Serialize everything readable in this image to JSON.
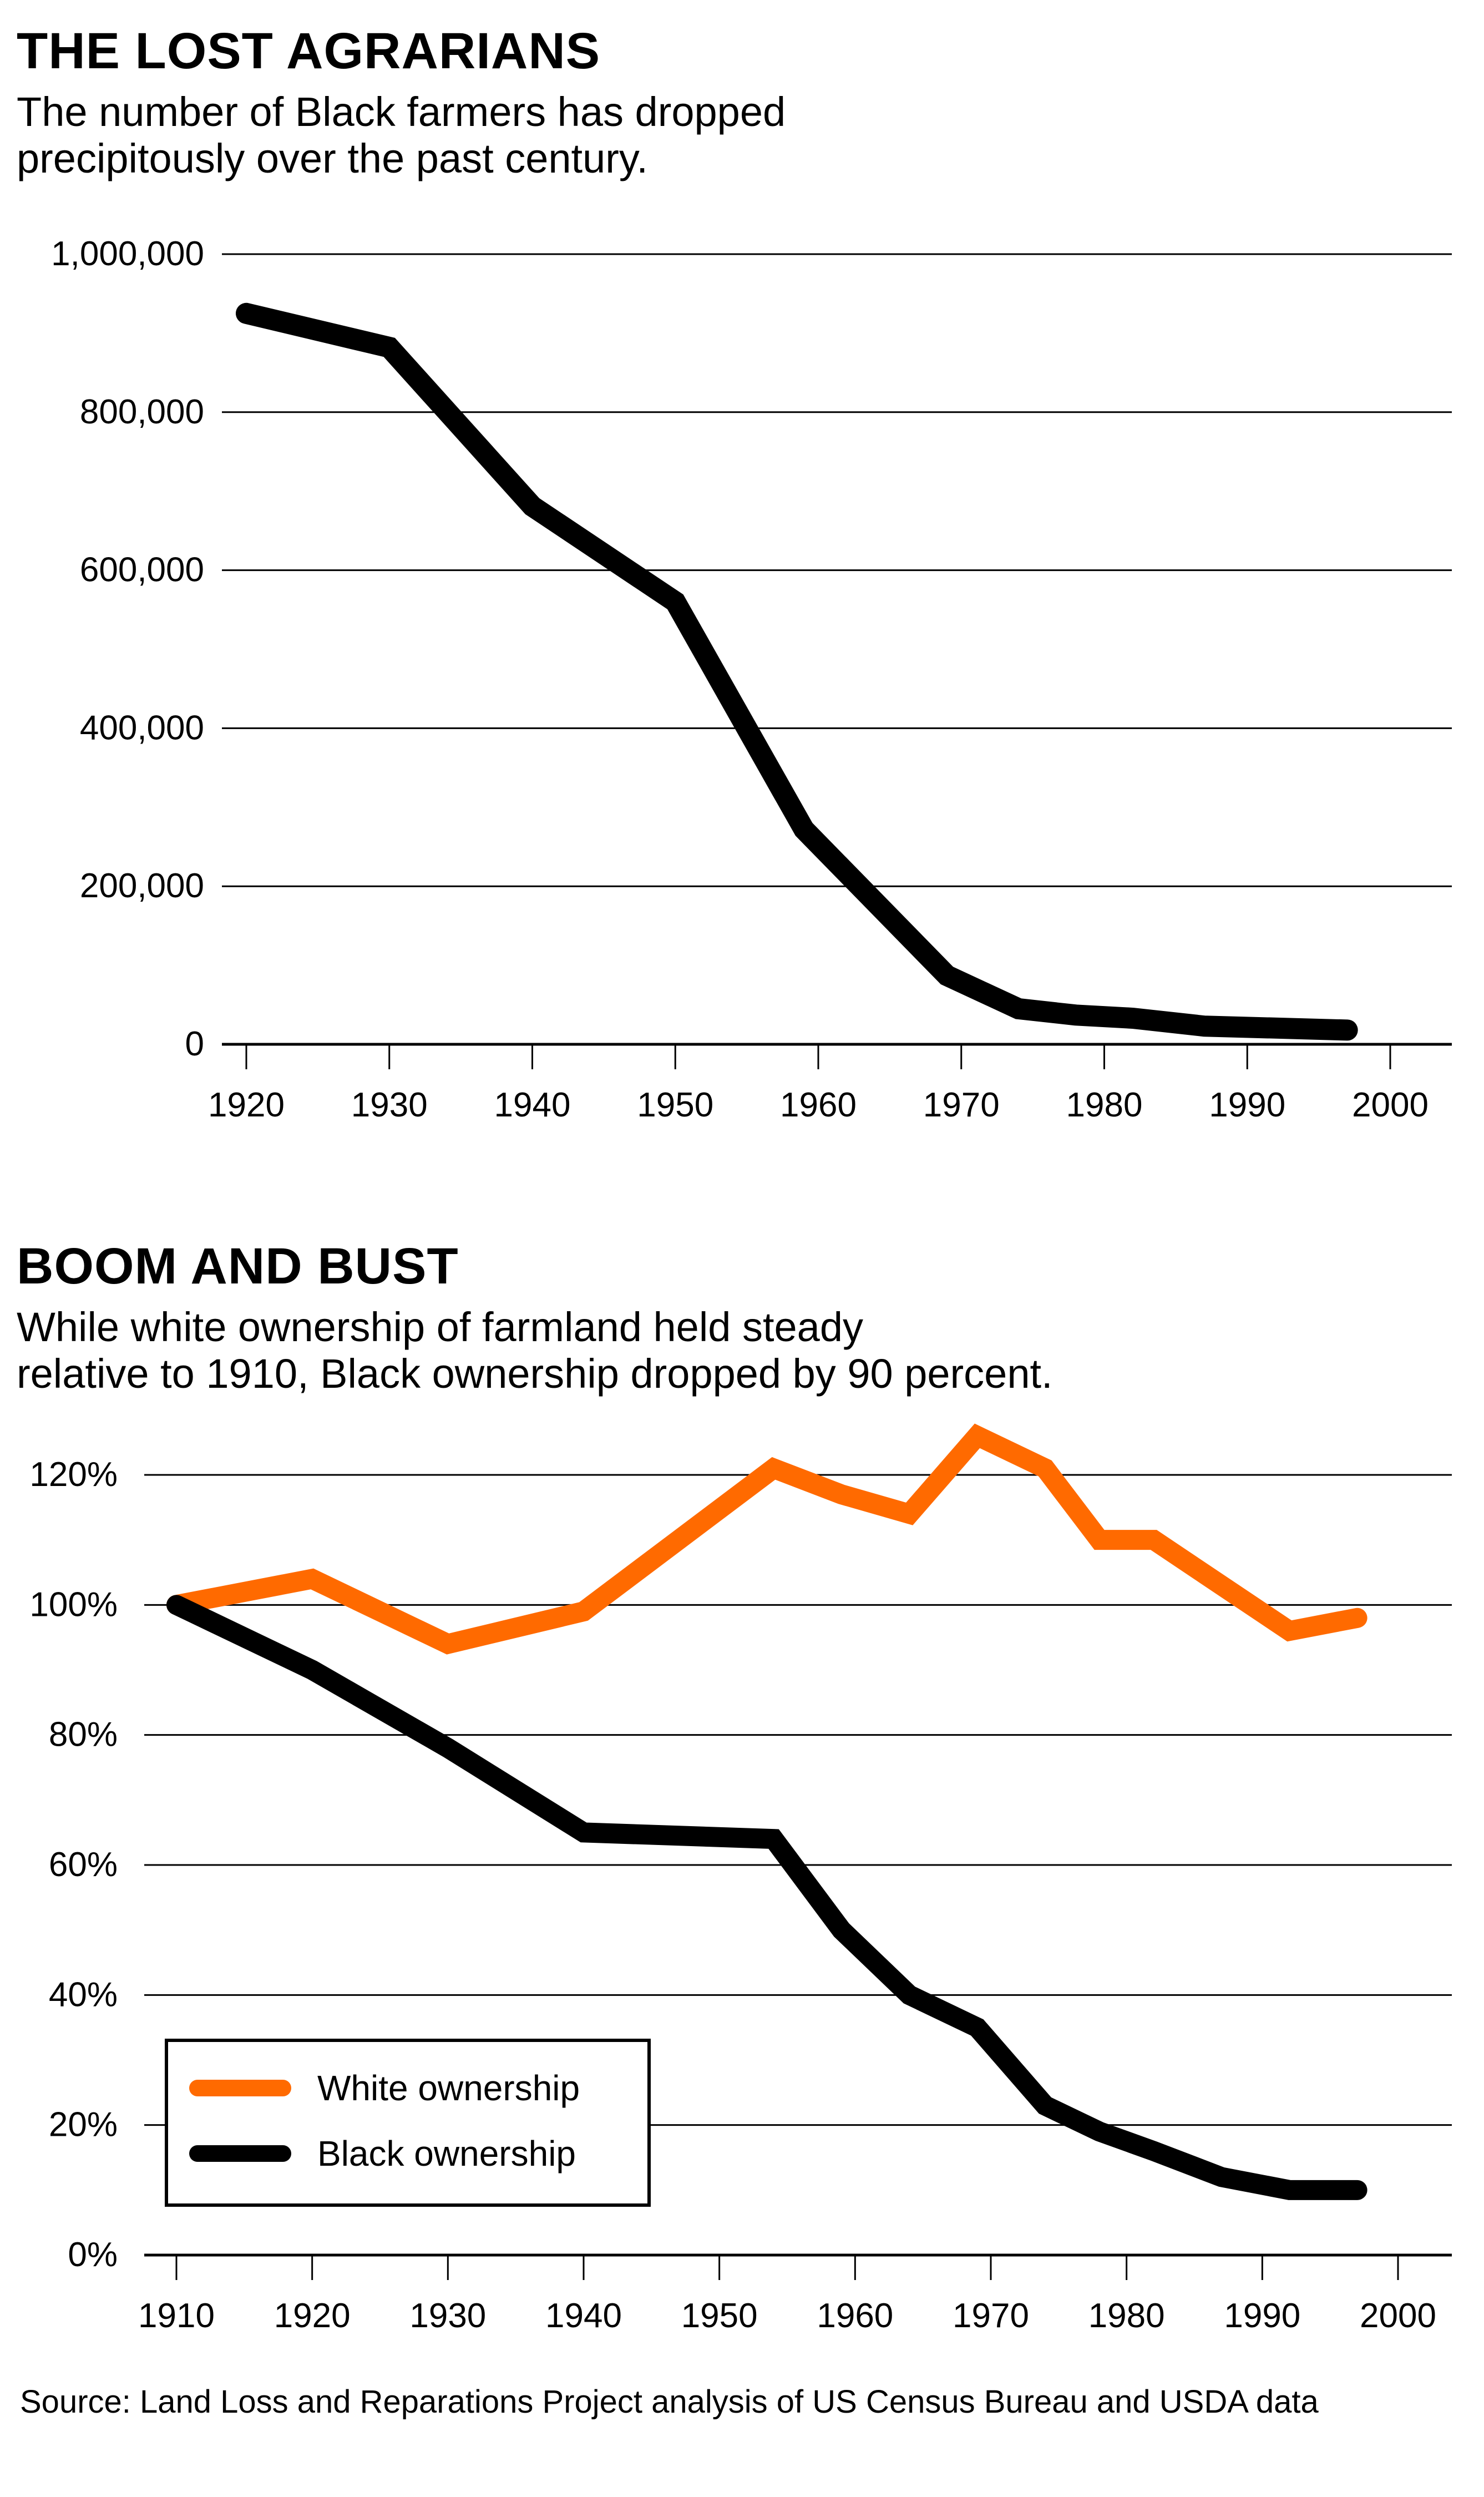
{
  "footer": {
    "source": "Source: Land Loss and Reparations Project analysis of US Census Bureau and USDA data"
  },
  "colors": {
    "black_line": "#000000",
    "white_line": "#ff6a00",
    "grid": "#000000"
  },
  "chart_data": [
    {
      "type": "line",
      "title": "THE LOST AGRARIANS",
      "subtitle_lines": [
        "The number of Black farmers has dropped",
        "precipitously over the past century."
      ],
      "xlabel": "",
      "ylabel": "",
      "xlim": [
        1916,
        2004
      ],
      "ylim": [
        0,
        1000000
      ],
      "grid": true,
      "xticks": [
        1920,
        1930,
        1940,
        1950,
        1960,
        1970,
        1980,
        1990,
        2000
      ],
      "yticks": [
        0,
        200000,
        400000,
        600000,
        800000,
        1000000
      ],
      "ytick_labels": [
        "0",
        "200,000",
        "400,000",
        "600,000",
        "800,000",
        "1,000,000"
      ],
      "series": [
        {
          "name": "Black farmers",
          "color": "#000000",
          "x": [
            1920,
            1930,
            1940,
            1950,
            1959,
            1969,
            1974,
            1978,
            1982,
            1987,
            1997
          ],
          "values": [
            925000,
            882000,
            681000,
            560000,
            272000,
            87000,
            45000,
            37000,
            33000,
            23000,
            18000
          ]
        }
      ]
    },
    {
      "type": "line",
      "title": "BOOM AND BUST",
      "subtitle_lines": [
        "While white ownership of farmland held steady",
        "relative to 1910, Black ownership dropped by 90 percent."
      ],
      "xlabel": "",
      "ylabel": "",
      "xlim": [
        1908,
        2004
      ],
      "ylim": [
        0,
        120
      ],
      "grid": true,
      "xticks": [
        1910,
        1920,
        1930,
        1940,
        1950,
        1960,
        1970,
        1980,
        1990,
        2000
      ],
      "yticks": [
        0,
        20,
        40,
        60,
        80,
        100,
        120
      ],
      "ytick_labels": [
        "0%",
        "20%",
        "40%",
        "60%",
        "80%",
        "100%",
        "120%"
      ],
      "legend_position": "bottom-left",
      "series": [
        {
          "name": "White ownership",
          "color": "#ff6a00",
          "x": [
            1910,
            1920,
            1930,
            1940,
            1954,
            1959,
            1964,
            1969,
            1974,
            1978,
            1982,
            1992,
            1997
          ],
          "values": [
            100,
            104,
            94,
            99,
            121,
            117,
            114,
            126,
            121,
            110,
            110,
            96,
            98
          ]
        },
        {
          "name": "Black ownership",
          "color": "#000000",
          "x": [
            1910,
            1920,
            1930,
            1940,
            1954,
            1959,
            1964,
            1969,
            1974,
            1978,
            1982,
            1987,
            1992,
            1997
          ],
          "values": [
            100,
            90,
            78,
            65,
            64,
            50,
            40,
            35,
            23,
            19,
            16,
            12,
            10,
            10
          ]
        }
      ]
    }
  ]
}
